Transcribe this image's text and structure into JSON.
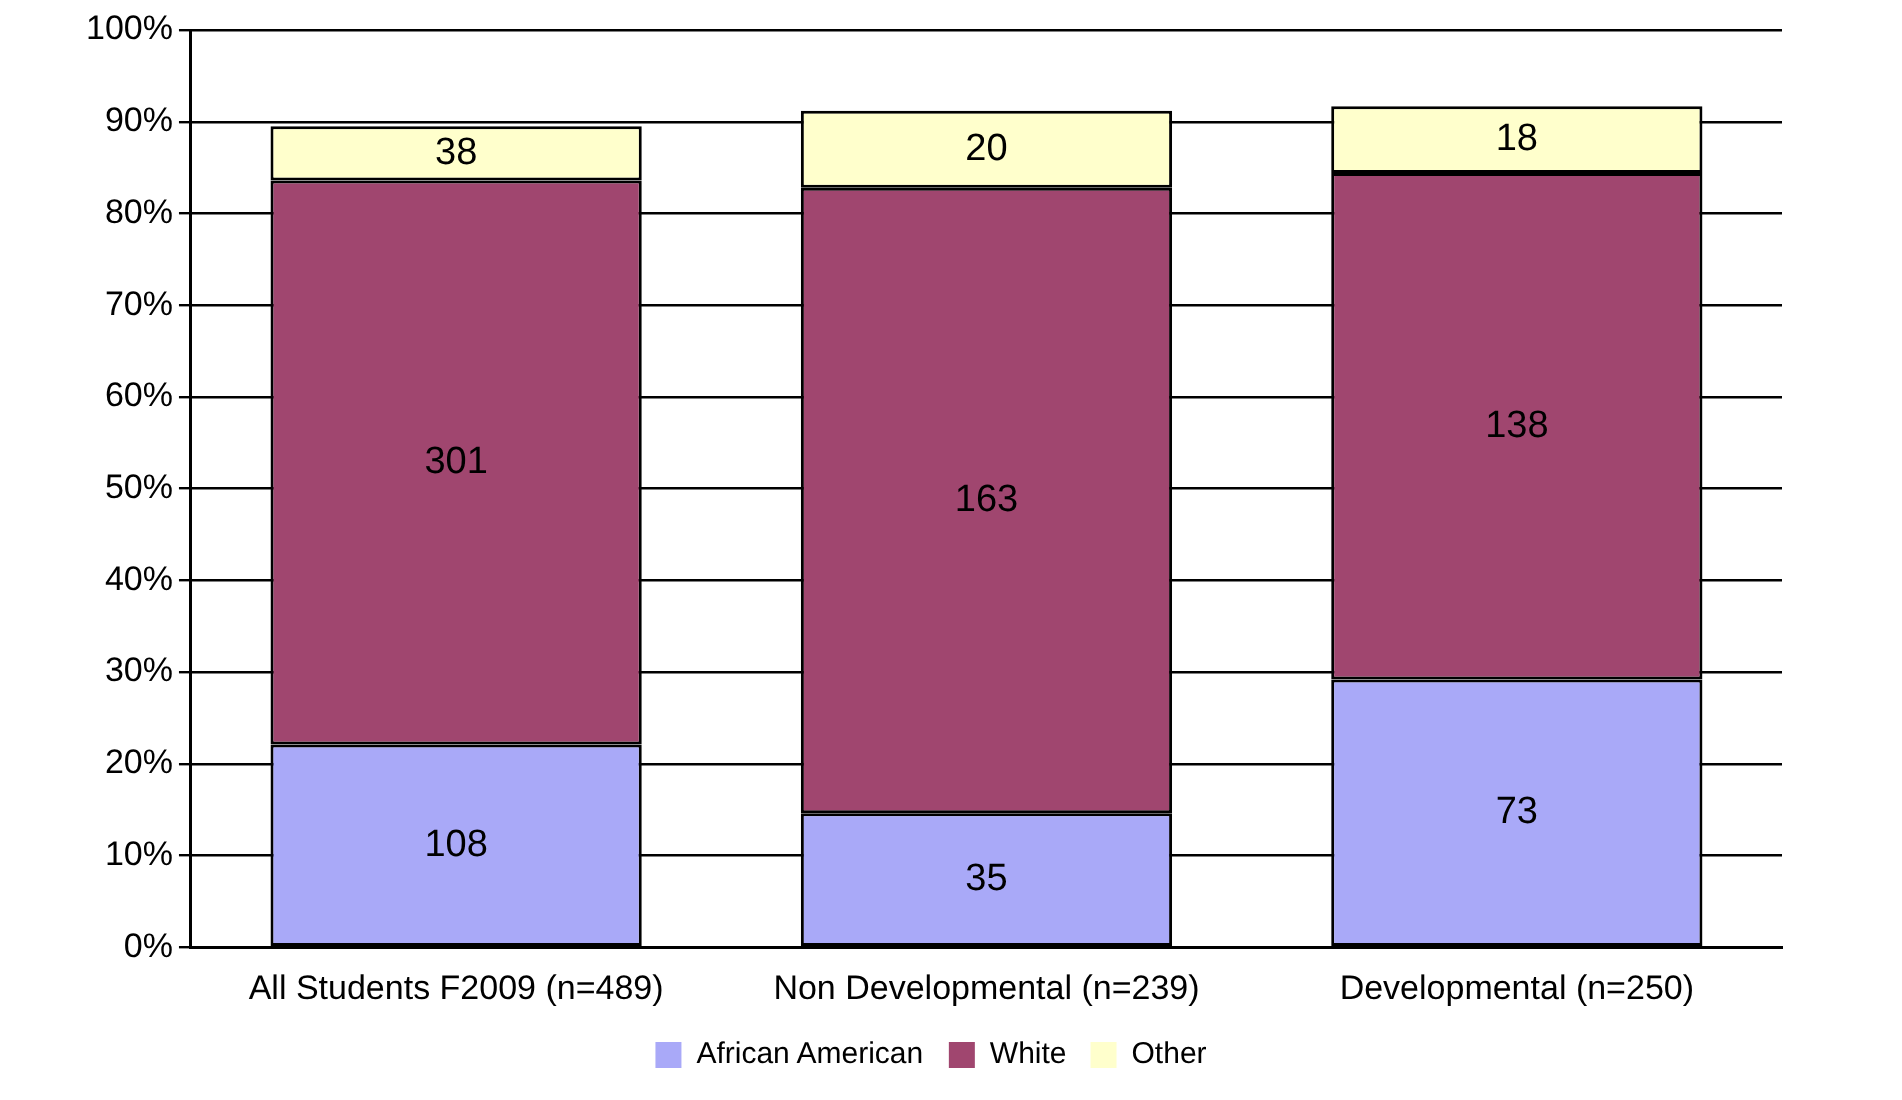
{
  "chart_data": {
    "type": "bar",
    "stacked": true,
    "categories": [
      "All Students F2009 (n=489)",
      "Non Developmental (n=239)",
      "Developmental (n=250)"
    ],
    "series": [
      {
        "name": "African American",
        "color": "#a9a9f8",
        "values": [
          22.1,
          14.6,
          29.2
        ]
      },
      {
        "name": "White",
        "color": "#a0466f",
        "values": [
          61.5,
          68.2,
          55.2
        ]
      },
      {
        "name": "Other",
        "color": "#ffffcc",
        "values": [
          5.9,
          8.4,
          7.3
        ]
      }
    ],
    "annotations": [
      "108",
      "301",
      "38",
      "35",
      "163",
      "20",
      "73",
      "138",
      "18"
    ],
    "ylim": [
      0,
      100
    ],
    "yticks": [
      {
        "value": 0,
        "label": "0%"
      },
      {
        "value": 10,
        "label": "10%"
      },
      {
        "value": 20,
        "label": "20%"
      },
      {
        "value": 30,
        "label": "30%"
      },
      {
        "value": 40,
        "label": "40%"
      },
      {
        "value": 50,
        "label": "50%"
      },
      {
        "value": 60,
        "label": "60%"
      },
      {
        "value": 70,
        "label": "70%"
      },
      {
        "value": 80,
        "label": "80%"
      },
      {
        "value": 90,
        "label": "90%"
      },
      {
        "value": 100,
        "label": "100%"
      }
    ],
    "grid": "y",
    "legend": "bottom"
  }
}
